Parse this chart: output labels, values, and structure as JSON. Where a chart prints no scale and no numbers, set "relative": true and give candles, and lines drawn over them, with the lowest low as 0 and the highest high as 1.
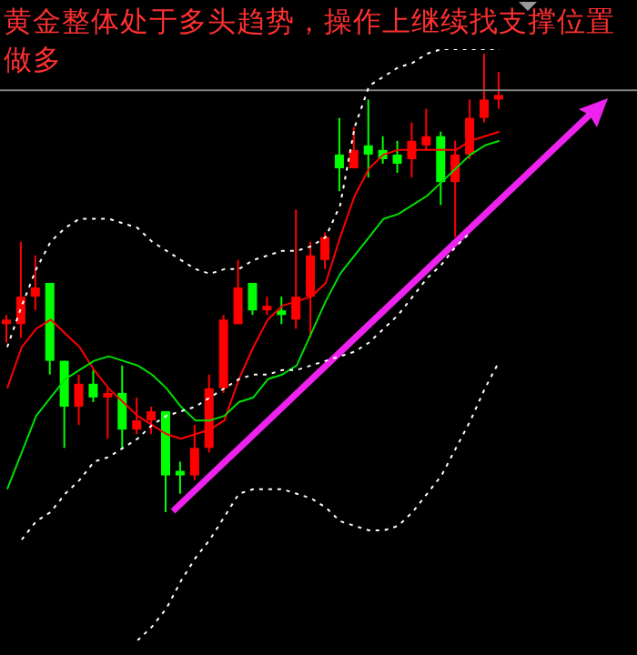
{
  "chart_data": {
    "type": "candlestick",
    "relative": true,
    "title": "黄金整体处于多头趋势，操作上继续找支撑位置做多",
    "categories": [
      null,
      null,
      null,
      null,
      null,
      null,
      null,
      null,
      null,
      null,
      null,
      null,
      null,
      null,
      null,
      null,
      null,
      null,
      null,
      null,
      null,
      null,
      null,
      null,
      null,
      null,
      null,
      null,
      null,
      null,
      null,
      null,
      null,
      null,
      null
    ],
    "ohlc": [
      [
        0.41,
        0.43,
        0.37,
        0.42
      ],
      [
        0.41,
        0.59,
        0.38,
        0.47
      ],
      [
        0.47,
        0.56,
        0.44,
        0.49
      ],
      [
        0.5,
        0.5,
        0.3,
        0.33
      ],
      [
        0.33,
        0.33,
        0.14,
        0.23
      ],
      [
        0.23,
        0.3,
        0.19,
        0.28
      ],
      [
        0.28,
        0.31,
        0.24,
        0.25
      ],
      [
        0.25,
        0.27,
        0.16,
        0.26
      ],
      [
        0.26,
        0.32,
        0.14,
        0.18
      ],
      [
        0.18,
        0.25,
        0.17,
        0.2
      ],
      [
        0.2,
        0.23,
        0.17,
        0.22
      ],
      [
        0.22,
        0.22,
        0,
        0.08
      ],
      [
        0.09,
        0.11,
        0.04,
        0.08
      ],
      [
        0.08,
        0.19,
        0.07,
        0.14
      ],
      [
        0.14,
        0.3,
        0.13,
        0.27
      ],
      [
        0.27,
        0.43,
        0.26,
        0.42
      ],
      [
        0.41,
        0.55,
        0.41,
        0.49
      ],
      [
        0.5,
        0.5,
        0.43,
        0.44
      ],
      [
        0.44,
        0.47,
        0.43,
        0.45
      ],
      [
        0.44,
        0.47,
        0.41,
        0.43
      ],
      [
        0.42,
        0.66,
        0.4,
        0.47
      ],
      [
        0.47,
        0.59,
        0.38,
        0.56
      ],
      [
        0.55,
        0.61,
        0.53,
        0.6
      ],
      [
        0.78,
        0.86,
        0.7,
        0.75
      ],
      [
        0.75,
        0.84,
        0.75,
        0.79
      ],
      [
        0.8,
        0.9,
        0.73,
        0.78
      ],
      [
        0.79,
        0.82,
        0.76,
        0.77
      ],
      [
        0.78,
        0.81,
        0.74,
        0.76
      ],
      [
        0.77,
        0.85,
        0.73,
        0.81
      ],
      [
        0.8,
        0.88,
        0.79,
        0.82
      ],
      [
        0.82,
        0.83,
        0.67,
        0.72
      ],
      [
        0.72,
        0.81,
        0.6,
        0.78
      ],
      [
        0.78,
        0.9,
        0.77,
        0.86
      ],
      [
        0.86,
        1,
        0.85,
        0.9
      ],
      [
        0.9,
        0.96,
        0.88,
        0.91
      ]
    ],
    "colors": [
      "#ff0000",
      "#ff0000",
      "#ff0000",
      "#00ff00",
      "#00ff00",
      "#ff0000",
      "#00ff00",
      "#ff0000",
      "#00ff00",
      "#ff0000",
      "#ff0000",
      "#00ff00",
      "#00ff00",
      "#ff0000",
      "#ff0000",
      "#ff0000",
      "#ff0000",
      "#00ff00",
      "#ff0000",
      "#00ff00",
      "#ff0000",
      "#ff0000",
      "#ff0000",
      "#00ff00",
      "#ff0000",
      "#00ff00",
      "#00ff00",
      "#00ff00",
      "#ff0000",
      "#ff0000",
      "#00ff00",
      "#ff0000",
      "#ff0000",
      "#ff0000",
      "#ff0000"
    ],
    "series": [
      {
        "type": "line",
        "color": "#ff0000",
        "line_style": "solid",
        "values": [
          0.27,
          0.36,
          0.4,
          0.42,
          0.39,
          0.36,
          0.31,
          0.27,
          0.24,
          0.21,
          0.19,
          0.17,
          0.16,
          0.17,
          0.18,
          0.2,
          0.29,
          0.36,
          0.42,
          0.45,
          0.46,
          0.47,
          0.5,
          0.6,
          0.69,
          0.75,
          0.78,
          0.79,
          0.79,
          0.79,
          0.79,
          0.79,
          0.81,
          0.82,
          0.83
        ]
      },
      {
        "type": "line",
        "color": "#00e000",
        "line_style": "solid",
        "values": [
          0.05,
          0.13,
          0.21,
          0.25,
          0.29,
          0.31,
          0.33,
          0.34,
          0.33,
          0.32,
          0.3,
          0.27,
          0.23,
          0.2,
          0.2,
          0.21,
          0.24,
          0.25,
          0.29,
          0.3,
          0.32,
          0.39,
          0.46,
          0.52,
          0.56,
          0.6,
          0.64,
          0.65,
          0.67,
          0.69,
          0.72,
          0.75,
          0.78,
          0.8,
          0.81
        ]
      },
      {
        "type": "line",
        "color": "#ffffff",
        "line_style": "dotted",
        "values": [
          0.36,
          0.45,
          0.53,
          0.59,
          0.62,
          0.64,
          0.64,
          0.64,
          0.63,
          0.62,
          0.59,
          0.57,
          0.55,
          0.53,
          0.52,
          0.53,
          0.53,
          0.55,
          0.56,
          0.57,
          0.57,
          0.58,
          0.6,
          0.67,
          0.84,
          0.93,
          0.95,
          0.97,
          0.98,
          1.0,
          1.01,
          1.01,
          1.01,
          1.01,
          1.01
        ]
      },
      {
        "type": "line",
        "color": "#ffffff",
        "line_style": "dotted",
        "values": [
          null,
          -0.06,
          -0.02,
          0.0,
          0.04,
          0.07,
          0.11,
          0.12,
          0.14,
          0.16,
          0.19,
          0.21,
          0.22,
          0.23,
          0.25,
          0.27,
          0.29,
          0.3,
          0.3,
          0.31,
          0.31,
          0.32,
          0.33,
          0.34,
          0.35,
          0.37,
          0.4,
          0.43,
          0.47,
          0.51,
          0.54,
          0.58,
          0.61,
          null,
          null
        ]
      },
      {
        "type": "line",
        "color": "#ffffff",
        "line_style": "dotted",
        "values": [
          null,
          null,
          null,
          null,
          null,
          null,
          null,
          null,
          null,
          -0.28,
          -0.25,
          -0.21,
          -0.15,
          -0.1,
          -0.06,
          -0.01,
          0.04,
          0.05,
          0.05,
          0.05,
          0.04,
          0.03,
          0.01,
          -0.02,
          -0.03,
          -0.04,
          -0.04,
          -0.03,
          0.0,
          0.04,
          0.08,
          0.14,
          0.2,
          0.27,
          0.33
        ]
      }
    ],
    "ref_lines": [
      {
        "axis": "y",
        "value": 0.92,
        "color": "#808080"
      }
    ]
  }
}
